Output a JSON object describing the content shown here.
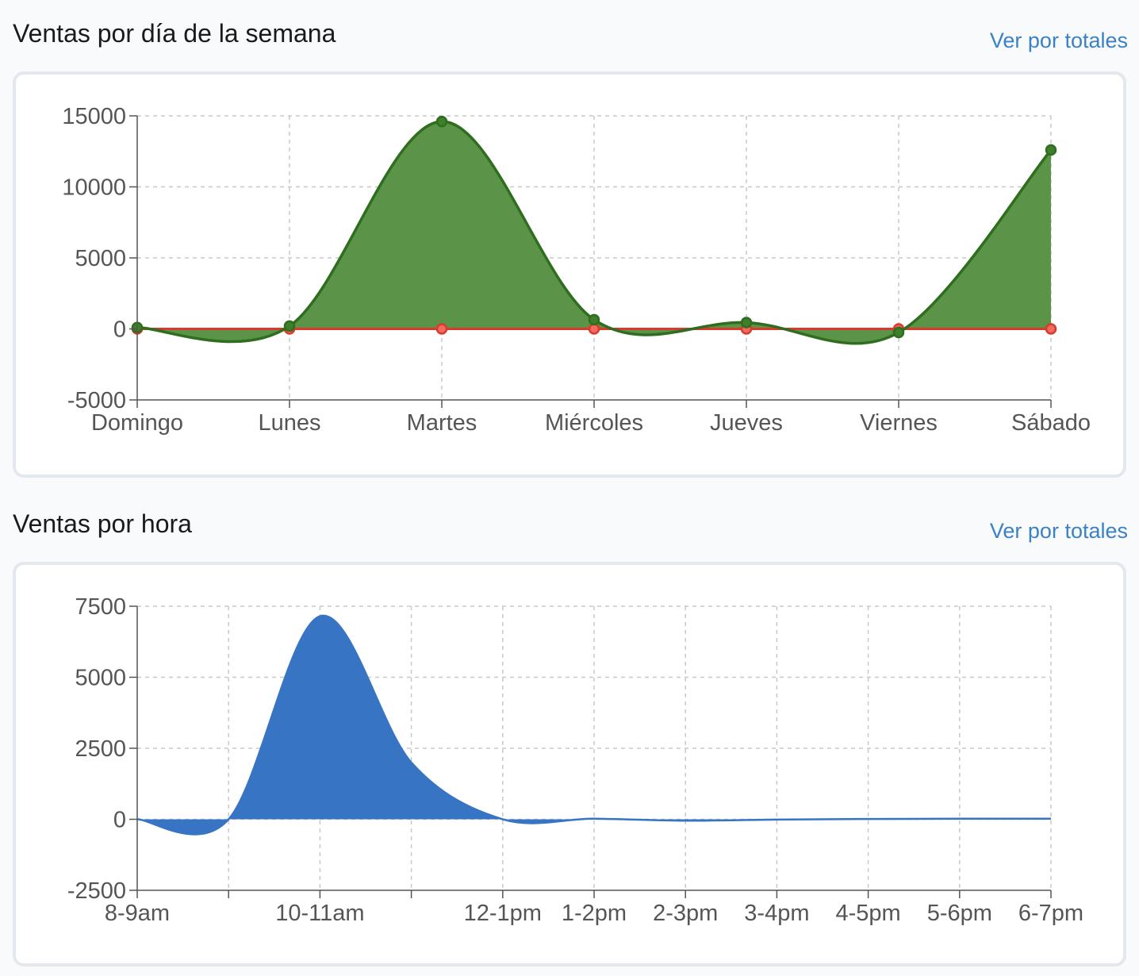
{
  "sections": [
    {
      "title": "Ventas por día de la semana",
      "link": "Ver por totales"
    },
    {
      "title": "Ventas por hora",
      "link": "Ver por totales"
    }
  ],
  "colors": {
    "green_line": "#2e6e1e",
    "green_fill": "#5b9448",
    "red_line": "#d93a2b",
    "blue_fill": "#3874c4",
    "blue_line": "#3874c4"
  },
  "chart_data": [
    {
      "type": "area",
      "categories": [
        "Domingo",
        "Lunes",
        "Martes",
        "Miércoles",
        "Jueves",
        "Viernes",
        "Sábado"
      ],
      "series": [
        {
          "values": [
            100,
            200,
            14600,
            650,
            450,
            -250,
            12600
          ]
        },
        {
          "values": [
            0,
            0,
            0,
            0,
            0,
            0,
            0
          ]
        }
      ],
      "ylim": [
        -5000,
        15000
      ],
      "yticks": [
        -5000,
        0,
        5000,
        10000,
        15000
      ],
      "grid": true,
      "markers": true
    },
    {
      "type": "area",
      "categories": [
        "8-9am",
        "",
        "10-11am",
        "",
        "12-1pm",
        "1-2pm",
        "2-3pm",
        "3-4pm",
        "4-5pm",
        "5-6pm",
        "6-7pm"
      ],
      "series": [
        {
          "values": [
            0,
            0,
            7150,
            2000,
            0,
            20,
            -50,
            -10,
            10,
            20,
            20
          ]
        }
      ],
      "ylim": [
        -2500,
        7500
      ],
      "yticks": [
        -2500,
        0,
        2500,
        5000,
        7500
      ],
      "grid": true,
      "markers": false
    }
  ]
}
